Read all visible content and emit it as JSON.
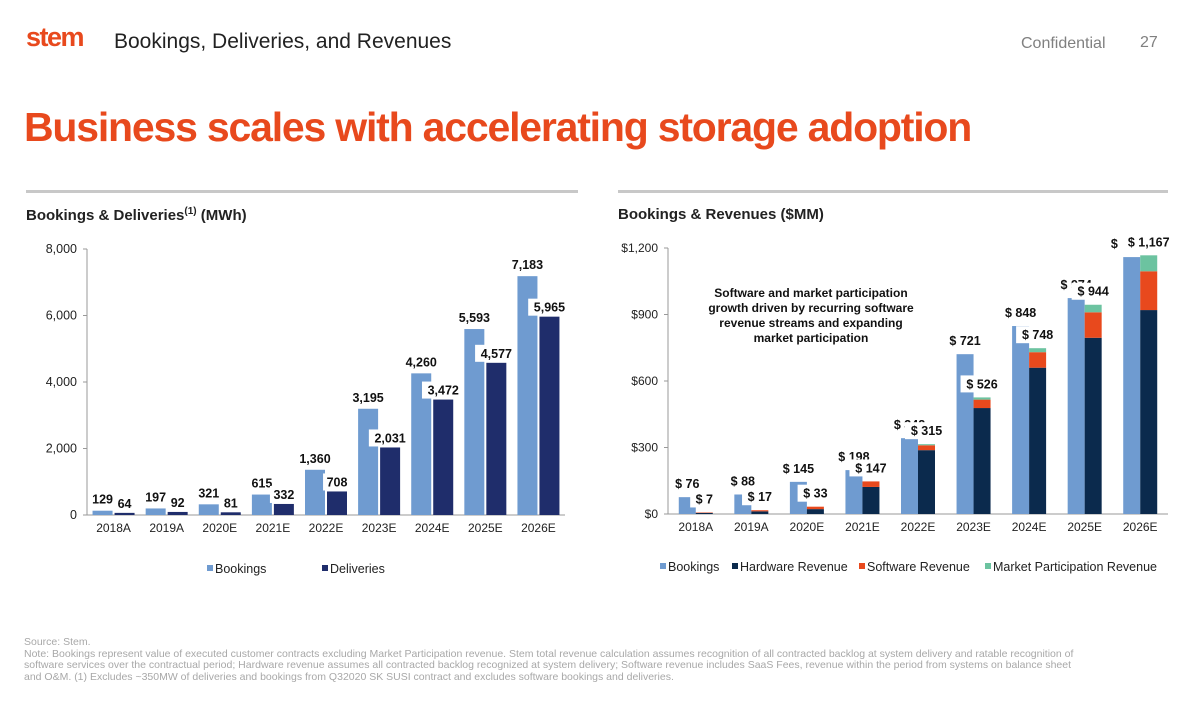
{
  "header": {
    "logo": "stem",
    "title": "Bookings, Deliveries, and Revenues",
    "confidential": "Confidential",
    "page_number": "27"
  },
  "main_title": "Business scales with accelerating storage adoption",
  "colors": {
    "accent": "#e8491d",
    "bookings": "#6f9bd0",
    "deliveries": "#1f2d6b",
    "hardware": "#0b2a4d",
    "software": "#e8491d",
    "market": "#6cc3a0"
  },
  "chart_data": [
    {
      "type": "bar",
      "title": "Bookings & Deliveries",
      "title_sup": "(1)",
      "title_suffix": " (MWh)",
      "categories": [
        "2018A",
        "2019A",
        "2020E",
        "2021E",
        "2022E",
        "2023E",
        "2024E",
        "2025E",
        "2026E"
      ],
      "ylim": [
        0,
        8000
      ],
      "yticks": [
        0,
        2000,
        4000,
        6000,
        8000
      ],
      "ytick_labels": [
        "0",
        "2,000",
        "4,000",
        "6,000",
        "8,000"
      ],
      "series": [
        {
          "name": "Bookings",
          "values": [
            129,
            197,
            321,
            615,
            1360,
            3195,
            4260,
            5593,
            7183
          ],
          "labels": [
            "129",
            "197",
            "321",
            "615",
            "1,360",
            "3,195",
            "4,260",
            "5,593",
            "7,183"
          ]
        },
        {
          "name": "Deliveries",
          "values": [
            64,
            92,
            81,
            332,
            708,
            2031,
            3472,
            4577,
            5965
          ],
          "labels": [
            "64",
            "92",
            "81",
            "332",
            "708",
            "2,031",
            "3,472",
            "4,577",
            "5,965"
          ]
        }
      ],
      "legend_position": "bottom"
    },
    {
      "type": "bar",
      "title": "Bookings & Revenues ($MM)",
      "categories": [
        "2018A",
        "2019A",
        "2020E",
        "2021E",
        "2022E",
        "2023E",
        "2024E",
        "2025E",
        "2026E"
      ],
      "ylim": [
        0,
        1200
      ],
      "yticks": [
        0,
        300,
        600,
        900,
        1200
      ],
      "ytick_labels": [
        "$0",
        "$300",
        "$600",
        "$900",
        "$1,200"
      ],
      "bookings": {
        "name": "Bookings",
        "values": [
          76,
          88,
          145,
          198,
          342,
          721,
          848,
          974,
          1159
        ],
        "labels": [
          "$ 76",
          "$ 88",
          "$ 145",
          "$ 198",
          "$ 342",
          "$ 721",
          "$ 848",
          "$ 974",
          "$ 1,159"
        ]
      },
      "revenue_stack": [
        {
          "name": "Hardware Revenue",
          "values": [
            5,
            12,
            22,
            122,
            288,
            478,
            660,
            795,
            920
          ]
        },
        {
          "name": "Software Revenue",
          "values": [
            2,
            5,
            11,
            25,
            22,
            38,
            70,
            115,
            175
          ]
        },
        {
          "name": "Market Participation Revenue",
          "values": [
            0,
            0,
            0,
            0,
            5,
            10,
            18,
            34,
            72
          ]
        }
      ],
      "revenue_totals": [
        7,
        17,
        33,
        147,
        315,
        526,
        748,
        944,
        1167
      ],
      "revenue_labels": [
        "$ 7",
        "$ 17",
        "$ 33",
        "$ 147",
        "$ 315",
        "$ 526",
        "$ 748",
        "$ 944",
        "$ 1,167"
      ],
      "annotation": [
        "Software and market participation",
        "growth driven by recurring software",
        "revenue streams and expanding",
        "market participation"
      ],
      "legend_position": "bottom"
    }
  ],
  "footnote": [
    "Source: Stem.",
    "Note: Bookings represent value of executed customer contracts excluding Market Participation revenue. Stem total revenue calculation assumes recognition of all contracted backlog at system delivery and ratable recognition of",
    "software services over the contractual period; Hardware revenue assumes all contracted backlog recognized at system delivery; Software revenue includes SaaS Fees, revenue within the period from systems on balance sheet",
    "and O&M. (1) Excludes ~350MW of deliveries and bookings from Q32020 SK SUSI contract and excludes software bookings and deliveries."
  ]
}
